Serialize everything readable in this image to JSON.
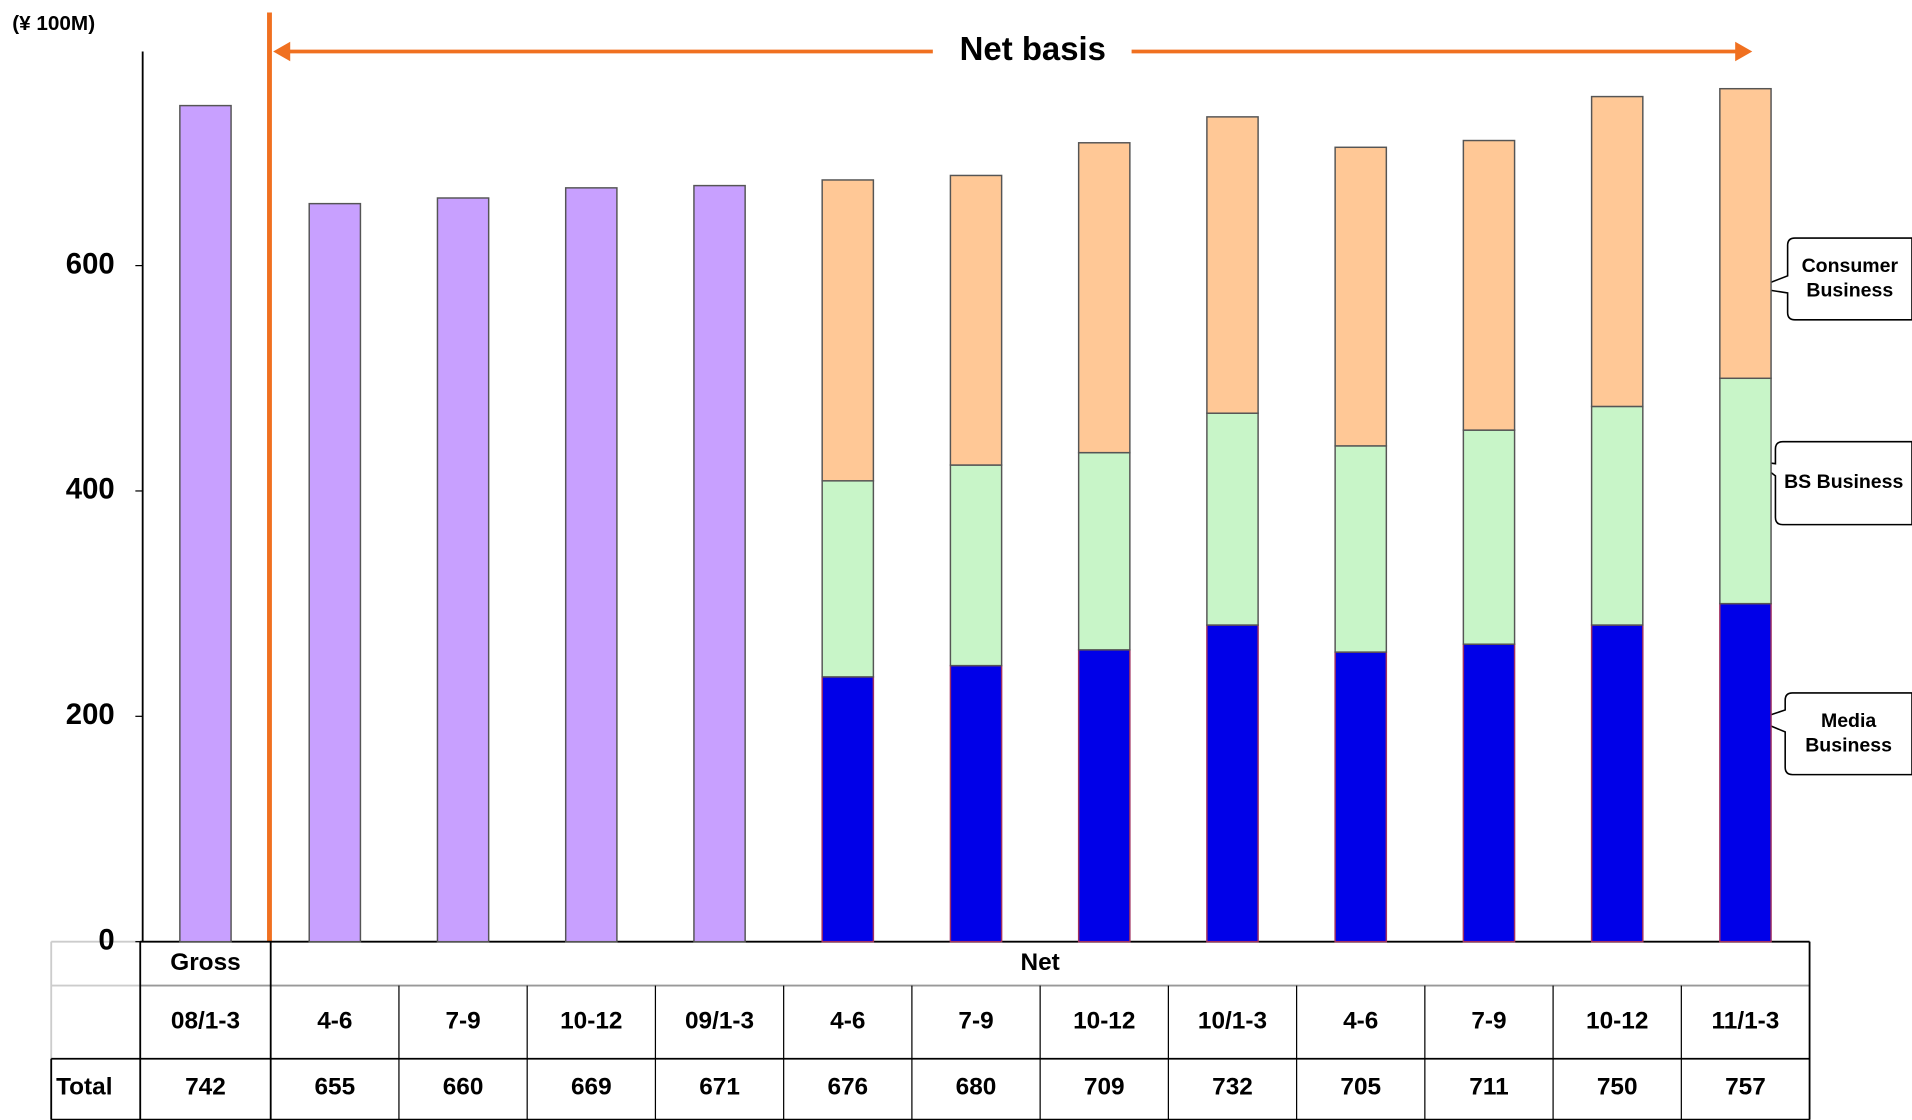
{
  "chart_data": {
    "type": "bar",
    "stacked": true,
    "unit_label": "(¥ 100M)",
    "annotation": "Net basis",
    "categories": [
      "08/1-3",
      "4-6",
      "7-9",
      "10-12",
      "09/1-3",
      "4-6",
      "7-9",
      "10-12",
      "10/1-3",
      "4-6",
      "7-9",
      "10-12",
      "11/1-3"
    ],
    "groups": [
      {
        "label": "Gross",
        "span": 1
      },
      {
        "label": "Net",
        "span": 12
      }
    ],
    "total_row_label": "Total",
    "totals": [
      742,
      655,
      660,
      669,
      671,
      676,
      680,
      709,
      732,
      705,
      711,
      750,
      757
    ],
    "series": [
      {
        "color": "#c8a0ff",
        "values": [
          742,
          655,
          660,
          669,
          671,
          null,
          null,
          null,
          null,
          null,
          null,
          null,
          null
        ]
      },
      {
        "name": "Media Business",
        "color": "#0000e8",
        "values": [
          null,
          null,
          null,
          null,
          null,
          235,
          245,
          259,
          281,
          257,
          264,
          281,
          300
        ]
      },
      {
        "name": "BS Business",
        "color": "#c8f5c8",
        "values": [
          null,
          null,
          null,
          null,
          null,
          174,
          178,
          175,
          188,
          183,
          190,
          194,
          200
        ]
      },
      {
        "name": "Consumer Business",
        "color": "#ffc896",
        "values": [
          null,
          null,
          null,
          null,
          null,
          267,
          257,
          275,
          263,
          265,
          257,
          275,
          257
        ]
      }
    ],
    "ylim": [
      0,
      790
    ],
    "yticks": [
      0,
      200,
      400,
      600
    ]
  }
}
